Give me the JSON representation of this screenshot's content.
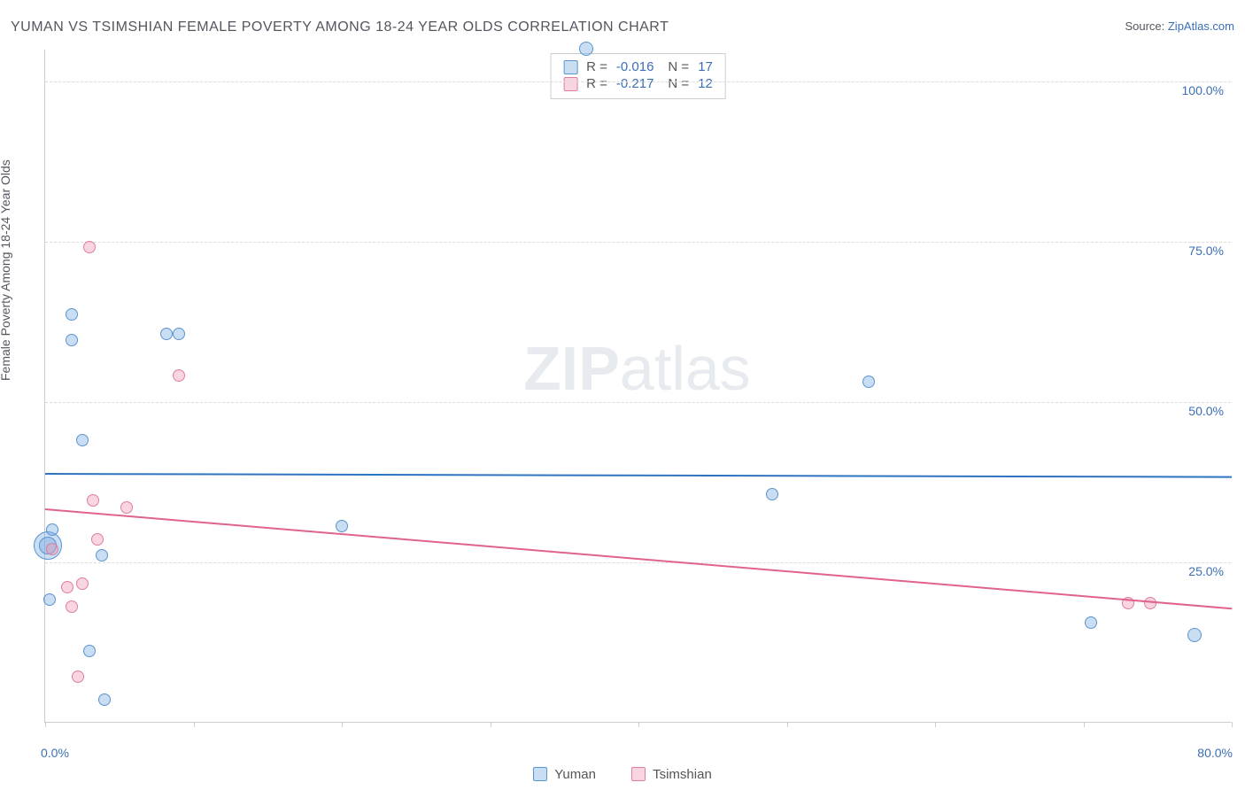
{
  "header": {
    "title": "YUMAN VS TSIMSHIAN FEMALE POVERTY AMONG 18-24 YEAR OLDS CORRELATION CHART",
    "source_prefix": "Source: ",
    "source_link": "ZipAtlas.com"
  },
  "yaxis": {
    "label": "Female Poverty Among 18-24 Year Olds"
  },
  "watermark": {
    "bold": "ZIP",
    "rest": "atlas"
  },
  "chart": {
    "type": "scatter",
    "xlim": [
      0,
      80
    ],
    "ylim": [
      0,
      105
    ],
    "xtick_positions": [
      0,
      10,
      20,
      30,
      40,
      50,
      60,
      70,
      80
    ],
    "xtick_labels": {
      "0": "0.0%",
      "80": "80.0%"
    },
    "ytick_positions": [
      25,
      50,
      75,
      100
    ],
    "ytick_labels": {
      "25": "25.0%",
      "50": "50.0%",
      "75": "75.0%",
      "100": "100.0%"
    },
    "grid_color": "#dcdcdc",
    "background_color": "#ffffff",
    "series": [
      {
        "name": "Yuman",
        "fill": "rgba(120,170,225,0.40)",
        "stroke": "#5a94cf",
        "line_color": "#2f74c0",
        "R": "-0.016",
        "N": "17",
        "trend": {
          "y_at_x0": 39.0,
          "y_at_xmax": 38.5
        },
        "points": [
          {
            "x": 0.2,
            "y": 27.5,
            "r": 16
          },
          {
            "x": 0.2,
            "y": 27.5,
            "r": 10
          },
          {
            "x": 0.3,
            "y": 19.0,
            "r": 7
          },
          {
            "x": 0.5,
            "y": 30.0,
            "r": 7
          },
          {
            "x": 1.8,
            "y": 63.5,
            "r": 7
          },
          {
            "x": 1.8,
            "y": 59.5,
            "r": 7
          },
          {
            "x": 2.5,
            "y": 44.0,
            "r": 7
          },
          {
            "x": 3.0,
            "y": 11.0,
            "r": 7
          },
          {
            "x": 3.8,
            "y": 26.0,
            "r": 7
          },
          {
            "x": 4.0,
            "y": 3.5,
            "r": 7
          },
          {
            "x": 8.2,
            "y": 60.5,
            "r": 7
          },
          {
            "x": 9.0,
            "y": 60.5,
            "r": 7
          },
          {
            "x": 20.0,
            "y": 30.5,
            "r": 7
          },
          {
            "x": 36.5,
            "y": 105.0,
            "r": 8
          },
          {
            "x": 49.0,
            "y": 35.5,
            "r": 7
          },
          {
            "x": 55.5,
            "y": 53.0,
            "r": 7
          },
          {
            "x": 70.5,
            "y": 15.5,
            "r": 7
          },
          {
            "x": 77.5,
            "y": 13.5,
            "r": 8
          }
        ]
      },
      {
        "name": "Tsimshian",
        "fill": "rgba(240,150,175,0.40)",
        "stroke": "#de7da0",
        "line_color": "#e0628f",
        "R": "-0.217",
        "N": "12",
        "trend": {
          "y_at_x0": 33.5,
          "y_at_xmax": 18.0
        },
        "points": [
          {
            "x": 0.5,
            "y": 27.0,
            "r": 7
          },
          {
            "x": 1.5,
            "y": 21.0,
            "r": 7
          },
          {
            "x": 1.8,
            "y": 18.0,
            "r": 7
          },
          {
            "x": 2.2,
            "y": 7.0,
            "r": 7
          },
          {
            "x": 2.5,
            "y": 21.5,
            "r": 7
          },
          {
            "x": 3.0,
            "y": 74.0,
            "r": 7
          },
          {
            "x": 3.2,
            "y": 34.5,
            "r": 7
          },
          {
            "x": 3.5,
            "y": 28.5,
            "r": 7
          },
          {
            "x": 5.5,
            "y": 33.5,
            "r": 7
          },
          {
            "x": 9.0,
            "y": 54.0,
            "r": 7
          },
          {
            "x": 73.0,
            "y": 18.5,
            "r": 7
          },
          {
            "x": 74.5,
            "y": 18.5,
            "r": 7
          }
        ]
      }
    ]
  },
  "legend": {
    "series1": "Yuman",
    "series2": "Tsimshian"
  }
}
